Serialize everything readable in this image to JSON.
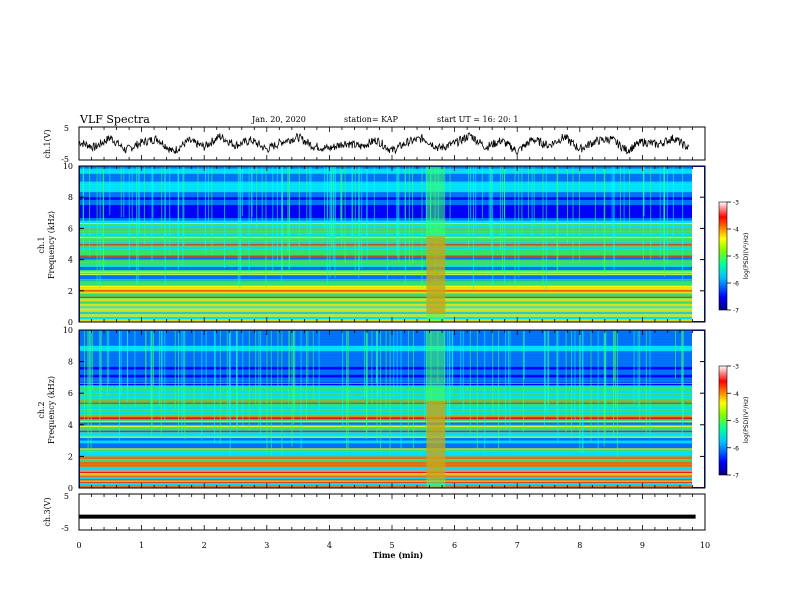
{
  "header": {
    "title": "VLF Spectra",
    "date": "Jan. 20, 2020",
    "station": "station= KAP",
    "start_ut": "start  UT =   16: 20: 1"
  },
  "chart_data": {
    "type": "heatmap",
    "xlabel": "Time  (min)",
    "xlim": [
      0,
      10
    ],
    "x_ticks": [
      "0",
      "1",
      "2",
      "3",
      "4",
      "5",
      "6",
      "7",
      "8",
      "9",
      "10"
    ],
    "panels": [
      {
        "id": "ch1_waveform",
        "type": "line",
        "ylabel": "ch.1(V)",
        "ylim": [
          -5,
          5
        ],
        "y_ticks": [
          "5",
          "-5"
        ],
        "x": [
          0.0,
          0.25,
          0.5,
          0.75,
          1.0,
          1.25,
          1.5,
          1.75,
          2.0,
          2.25,
          2.5,
          2.75,
          3.0,
          3.25,
          3.5,
          3.75,
          4.0,
          4.25,
          4.5,
          4.75,
          5.0,
          5.25,
          5.5,
          5.75,
          6.0,
          6.25,
          6.5,
          6.75,
          7.0,
          7.25,
          7.5,
          7.75,
          8.0,
          8.25,
          8.5,
          8.75,
          9.0,
          9.25,
          9.5,
          9.75
        ],
        "y": [
          0.5,
          -1.2,
          1.8,
          -2.0,
          0.3,
          1.5,
          -2.5,
          0.8,
          -1.0,
          2.2,
          -0.5,
          1.0,
          -1.8,
          0.6,
          1.9,
          -0.8,
          -1.5,
          0.2,
          -0.9,
          1.1,
          -2.2,
          0.4,
          1.6,
          -1.4,
          0.0,
          2.5,
          -1.1,
          0.9,
          -2.4,
          1.3,
          -0.6,
          2.0,
          -1.7,
          0.7,
          1.4,
          -2.1,
          0.5,
          -0.3,
          1.7,
          -1.6
        ],
        "color": "#000000"
      },
      {
        "id": "ch1_spectrogram",
        "type": "heatmap",
        "ylabel": "ch.1\nFrequency  (kHz)",
        "ylabel_line1": "ch.1",
        "ylabel_line2": "Frequency  (kHz)",
        "ylim": [
          0,
          10
        ],
        "y_ticks": [
          "0",
          "2",
          "4",
          "6",
          "8",
          "10"
        ],
        "colorbar": {
          "label": "log(PSD)(V²/Hz)",
          "range": [
            -7,
            -3
          ],
          "ticks": [
            "-3",
            "-4",
            "-5",
            "-6",
            "-7"
          ]
        }
      },
      {
        "id": "ch2_spectrogram",
        "type": "heatmap",
        "ylabel": "ch.2\nFrequency  (kHz)",
        "ylabel_line1": "ch.2",
        "ylabel_line2": "Frequency  (kHz)",
        "ylim": [
          0,
          10
        ],
        "y_ticks": [
          "0",
          "2",
          "4",
          "6",
          "8",
          "10"
        ],
        "colorbar": {
          "label": "log(PSD)(V²/Hz)",
          "range": [
            -7,
            -3
          ],
          "ticks": [
            "-3",
            "-4",
            "-5",
            "-6",
            "-7"
          ]
        }
      },
      {
        "id": "ch3_waveform",
        "type": "line",
        "ylabel": "ch.3(V)",
        "ylim": [
          -5,
          5
        ],
        "y_ticks": [
          "5",
          "-5"
        ],
        "x": [
          0,
          9.85
        ],
        "y": [
          -1.3,
          -1.3
        ],
        "color": "#000000"
      }
    ],
    "colormap": [
      "#00007a",
      "#0000ff",
      "#0080ff",
      "#00ffff",
      "#40ff60",
      "#ffff00",
      "#ff8000",
      "#ff0000",
      "#ff8080",
      "#ffffff"
    ],
    "colorbar_label": "log(PSD)(V²/Hz)"
  }
}
